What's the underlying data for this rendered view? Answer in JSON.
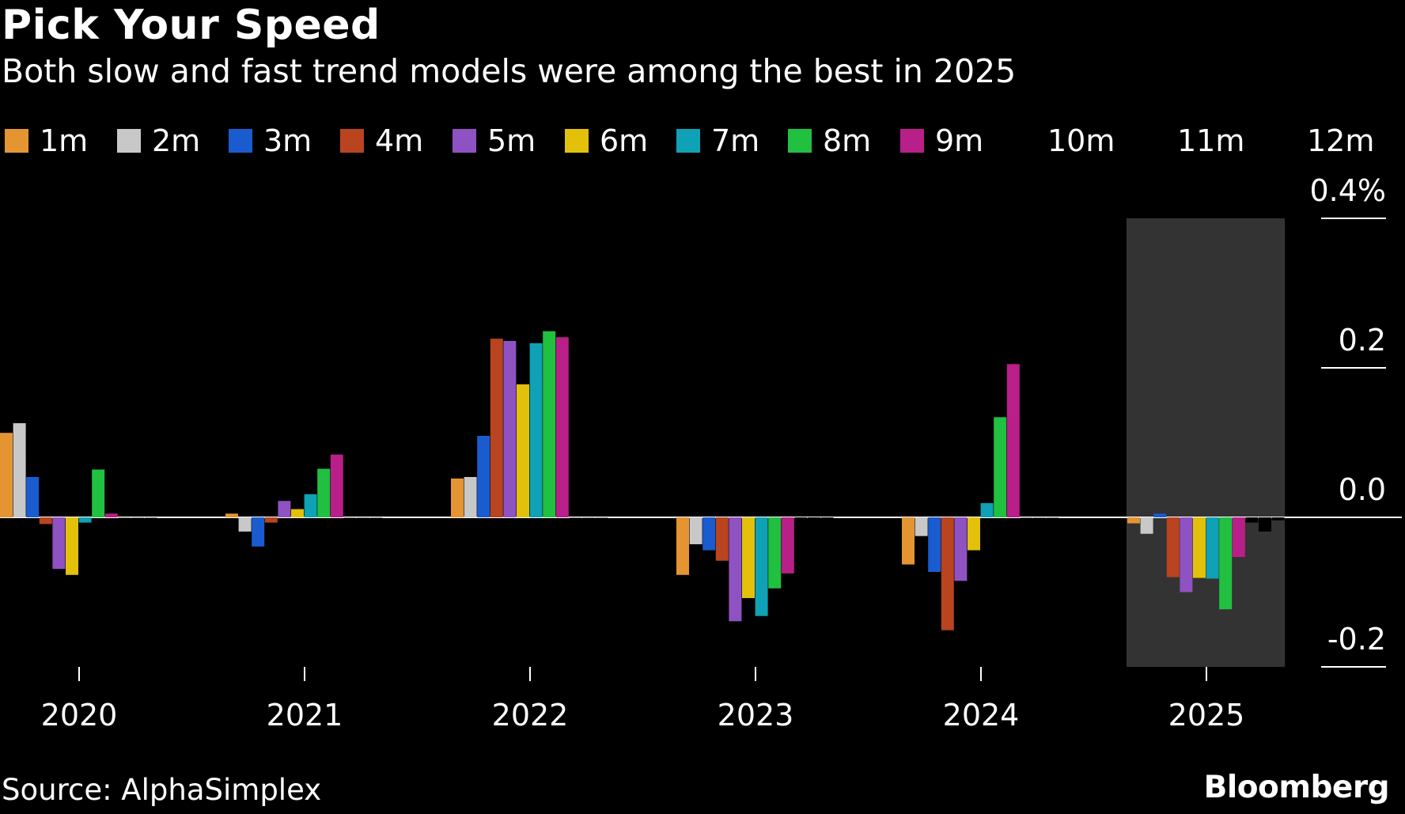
{
  "page": {
    "title": "Pick Your Speed",
    "subtitle": "Both slow and fast trend models were among the best in 2025",
    "source": "Source: AlphaSimplex",
    "brand": "Bloomberg"
  },
  "colors": {
    "background": "#000000",
    "highlight_band": "#333333",
    "zero_line": "#ffffff"
  },
  "chart_data": {
    "type": "bar",
    "categories": [
      "2020",
      "2021",
      "2022",
      "2023",
      "2024",
      "2025"
    ],
    "highlight_category": "2025",
    "ylim": [
      -0.2,
      0.4
    ],
    "yticks": [
      {
        "value": 0.4,
        "label": "0.4%"
      },
      {
        "value": 0.2,
        "label": "0.2"
      },
      {
        "value": 0.0,
        "label": "0.0"
      },
      {
        "value": -0.2,
        "label": "-0.2"
      }
    ],
    "y_axis_side": "right",
    "legend_position": "top",
    "grid": false,
    "series": [
      {
        "name": "1m",
        "color": "#e49531",
        "values": [
          0.113,
          0.005,
          0.052,
          -0.077,
          -0.063,
          -0.008
        ]
      },
      {
        "name": "2m",
        "color": "#c8c8c8",
        "values": [
          0.126,
          -0.019,
          0.054,
          -0.036,
          -0.025,
          -0.022
        ]
      },
      {
        "name": "3m",
        "color": "#1a5ccf",
        "values": [
          0.054,
          -0.039,
          0.109,
          -0.044,
          -0.073,
          0.005
        ]
      },
      {
        "name": "4m",
        "color": "#b9441f",
        "values": [
          -0.009,
          -0.007,
          0.239,
          -0.058,
          -0.151,
          -0.08
        ]
      },
      {
        "name": "5m",
        "color": "#8f52c2",
        "values": [
          -0.069,
          0.022,
          0.236,
          -0.139,
          -0.085,
          -0.1
        ]
      },
      {
        "name": "6m",
        "color": "#e3c10b",
        "values": [
          -0.077,
          0.011,
          0.178,
          -0.108,
          -0.044,
          -0.081
        ]
      },
      {
        "name": "7m",
        "color": "#0fa1b5",
        "values": [
          -0.007,
          0.031,
          0.233,
          -0.132,
          0.019,
          -0.082
        ]
      },
      {
        "name": "8m",
        "color": "#21c040",
        "values": [
          0.064,
          0.065,
          0.249,
          -0.095,
          0.134,
          -0.123
        ]
      },
      {
        "name": "9m",
        "color": "#b91f88",
        "values": [
          0.005,
          0.084,
          0.241,
          -0.075,
          0.205,
          -0.053
        ]
      },
      {
        "name": "10m",
        "color": "#000000",
        "values": [
          0,
          0,
          0,
          -0.002,
          0,
          -0.007
        ]
      },
      {
        "name": "11m",
        "color": "#000000",
        "values": [
          0,
          0,
          0,
          -0.002,
          0,
          -0.019
        ]
      },
      {
        "name": "12m",
        "color": "#000000",
        "values": [
          0,
          0,
          0,
          -0.001,
          0,
          -0.004
        ]
      }
    ]
  }
}
